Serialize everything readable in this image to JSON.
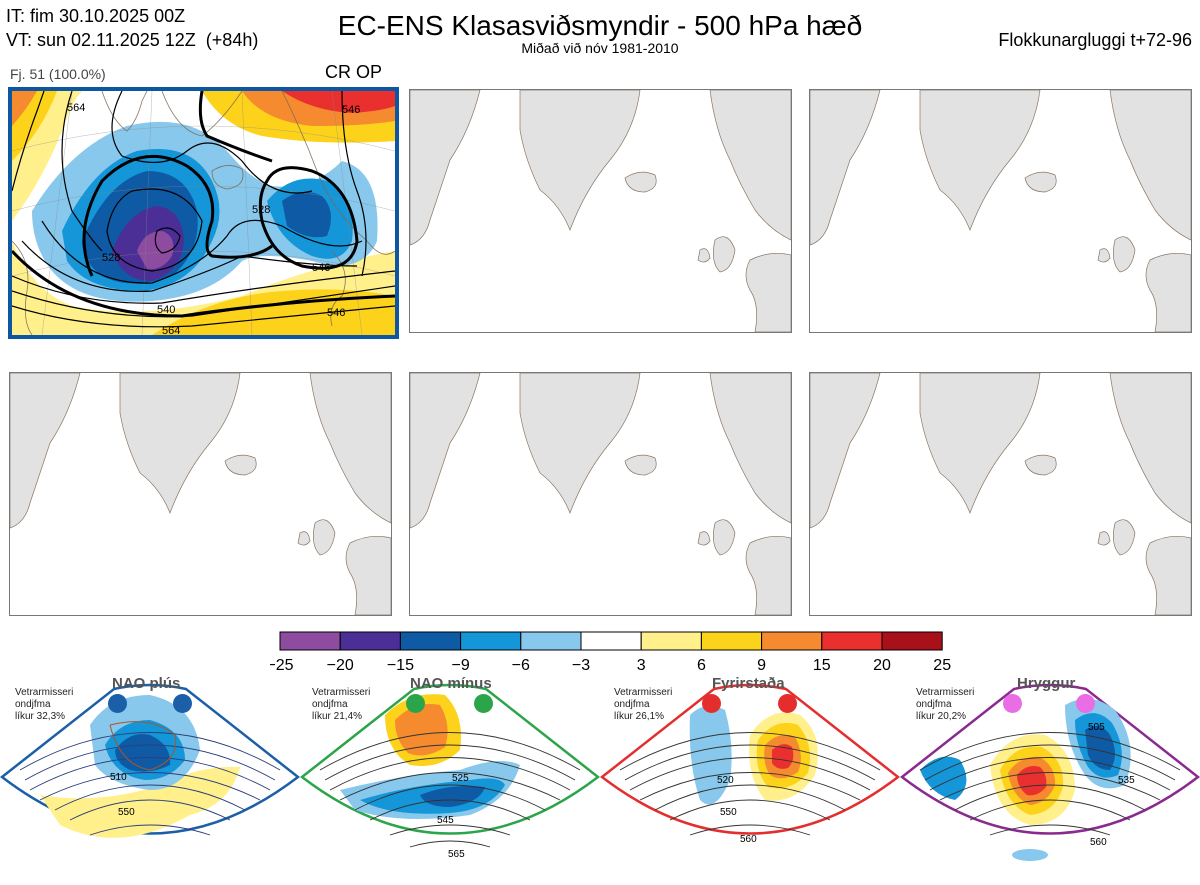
{
  "header": {
    "init_time": "IT: fim 30.10.2025 00Z",
    "valid_time": "VT: sun 02.11.2025 12Z  (+84h)",
    "title": "EC-ENS Klasasviðsmyndir - 500 hPa hæð",
    "subtitle": "Miðað við nóv 1981-2010",
    "window": "Flokkunargluggi t+72-96"
  },
  "cluster_panel": {
    "members_label": "Fj. 51 (100.0%)",
    "tag": "CR OP",
    "contour_labels": [
      "528",
      "528",
      "540",
      "546",
      "546",
      "564",
      "564",
      "546"
    ]
  },
  "colorbar": {
    "ticks": [
      "−25",
      "−20",
      "−15",
      "−9",
      "−6",
      "−3",
      "3",
      "6",
      "9",
      "15",
      "20",
      "25"
    ],
    "colors": [
      "#8e4ca0",
      "#4b2f96",
      "#0f5aa5",
      "#1496d8",
      "#87c8ec",
      "#ffffff",
      "#fff08c",
      "#fdd21a",
      "#f68a2e",
      "#e9302e",
      "#a8101a"
    ]
  },
  "regimes": [
    {
      "name": "NAO plús",
      "meta": [
        "Vetrarmisseri",
        "ondjfma",
        "líkur 32,3%"
      ],
      "edge": "#1a5fa8",
      "dot": "#1a5fa8",
      "contours": [
        "510",
        "550"
      ]
    },
    {
      "name": "NAO mínus",
      "meta": [
        "Vetrarmisseri",
        "ondjfma",
        "líkur 21,4%"
      ],
      "edge": "#2ca54a",
      "dot": "#2ca54a",
      "contours": [
        "525",
        "545",
        "565"
      ]
    },
    {
      "name": "Fyrirstaða",
      "meta": [
        "Vetrarmisseri",
        "ondjfma",
        "líkur 26,1%"
      ],
      "edge": "#e42e2e",
      "dot": "#e42e2e",
      "contours": [
        "520",
        "550",
        "560"
      ]
    },
    {
      "name": "Hryggur",
      "meta": [
        "Vetrarmisseri",
        "ondjfma",
        "líkur 20,2%"
      ],
      "edge": "#8a2a8e",
      "dot": "#e96ee6",
      "contours": [
        "505",
        "535",
        "560"
      ]
    }
  ]
}
